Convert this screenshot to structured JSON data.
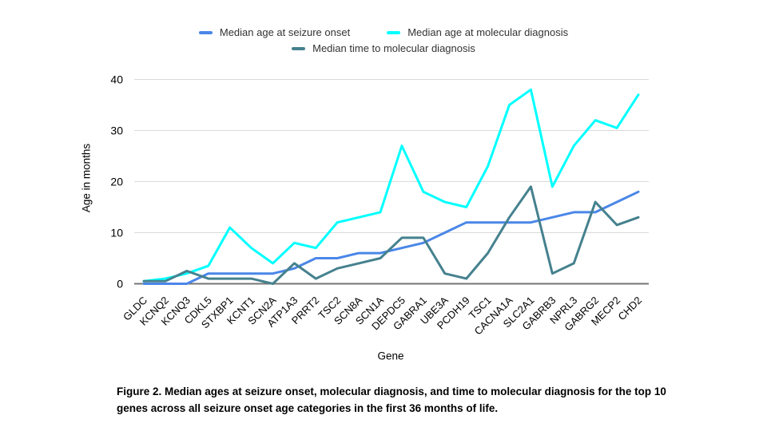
{
  "legend": {
    "items": [
      {
        "label": "Median age at seizure onset",
        "color": "#4a86e8"
      },
      {
        "label": "Median age at molecular diagnosis",
        "color": "#00ffff"
      },
      {
        "label": "Median time to molecular diagnosis",
        "color": "#45818e"
      }
    ]
  },
  "axes": {
    "y_title": "Age in months",
    "x_title": "Gene"
  },
  "caption": {
    "line1": "Figure 2. Median ages at seizure onset, molecular diagnosis, and time to molecular diagnosis for the top 10",
    "line2": "genes across all seizure onset age categories in the first 36 months of life."
  },
  "chart_data": {
    "type": "line",
    "title": "",
    "xlabel": "Gene",
    "ylabel": "Age in months",
    "ylim": [
      0,
      40
    ],
    "y_ticks": [
      0,
      10,
      20,
      30,
      40
    ],
    "grid": true,
    "legend_position": "top",
    "categories": [
      "GLDC",
      "KCNQ2",
      "KCNQ3",
      "CDKL5",
      "STXBP1",
      "KCNT1",
      "SCN2A",
      "ATP1A3",
      "PRRT2",
      "TSC2",
      "SCN8A",
      "SCN1A",
      "DEPDC5",
      "GABRA1",
      "UBE3A",
      "PCDH19",
      "TSC1",
      "CACNA1A",
      "SLC2A1",
      "GABRB3",
      "NPRL3",
      "GABRG2",
      "MECP2",
      "CHD2"
    ],
    "series": [
      {
        "name": "Median age at seizure onset",
        "color": "#4a86e8",
        "values": [
          0,
          0,
          0,
          2,
          2,
          2,
          2,
          3,
          5,
          5,
          6,
          6,
          7,
          8,
          10,
          12,
          12,
          12,
          12,
          13,
          14,
          14,
          16,
          18
        ]
      },
      {
        "name": "Median age at molecular diagnosis",
        "color": "#00ffff",
        "values": [
          0.5,
          1,
          2,
          3.5,
          11,
          7,
          4,
          8,
          7,
          12,
          13,
          14,
          27,
          18,
          16,
          15,
          23,
          35,
          38,
          19,
          27,
          32,
          30.5,
          37
        ]
      },
      {
        "name": "Median time to molecular diagnosis",
        "color": "#45818e",
        "values": [
          0.5,
          0.5,
          2.5,
          1,
          1,
          1,
          0,
          4,
          1,
          3,
          4,
          5,
          9,
          9,
          2,
          1,
          6,
          13,
          19,
          2,
          4,
          16,
          11.5,
          13
        ]
      }
    ]
  },
  "colors": {
    "grid": "#dadada",
    "zero_line": "#757575",
    "tick_text": "#000000"
  }
}
